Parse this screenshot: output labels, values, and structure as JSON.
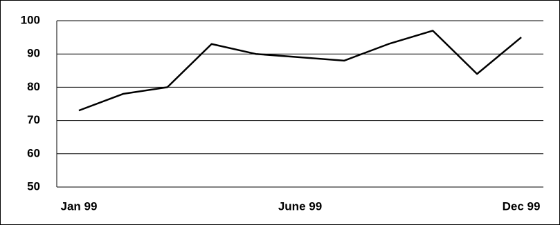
{
  "chart_data": {
    "type": "line",
    "categories": [
      "Jan 99",
      null,
      null,
      null,
      null,
      "June 99",
      null,
      null,
      null,
      null,
      "Dec 99"
    ],
    "series": [
      {
        "color": "#000000",
        "values": [
          73,
          78,
          80,
          93,
          90,
          89,
          88,
          93,
          97,
          84,
          95
        ]
      }
    ],
    "ylim": [
      50,
      100
    ],
    "yticks": [
      50,
      60,
      70,
      80,
      90,
      100
    ],
    "grid": true
  }
}
